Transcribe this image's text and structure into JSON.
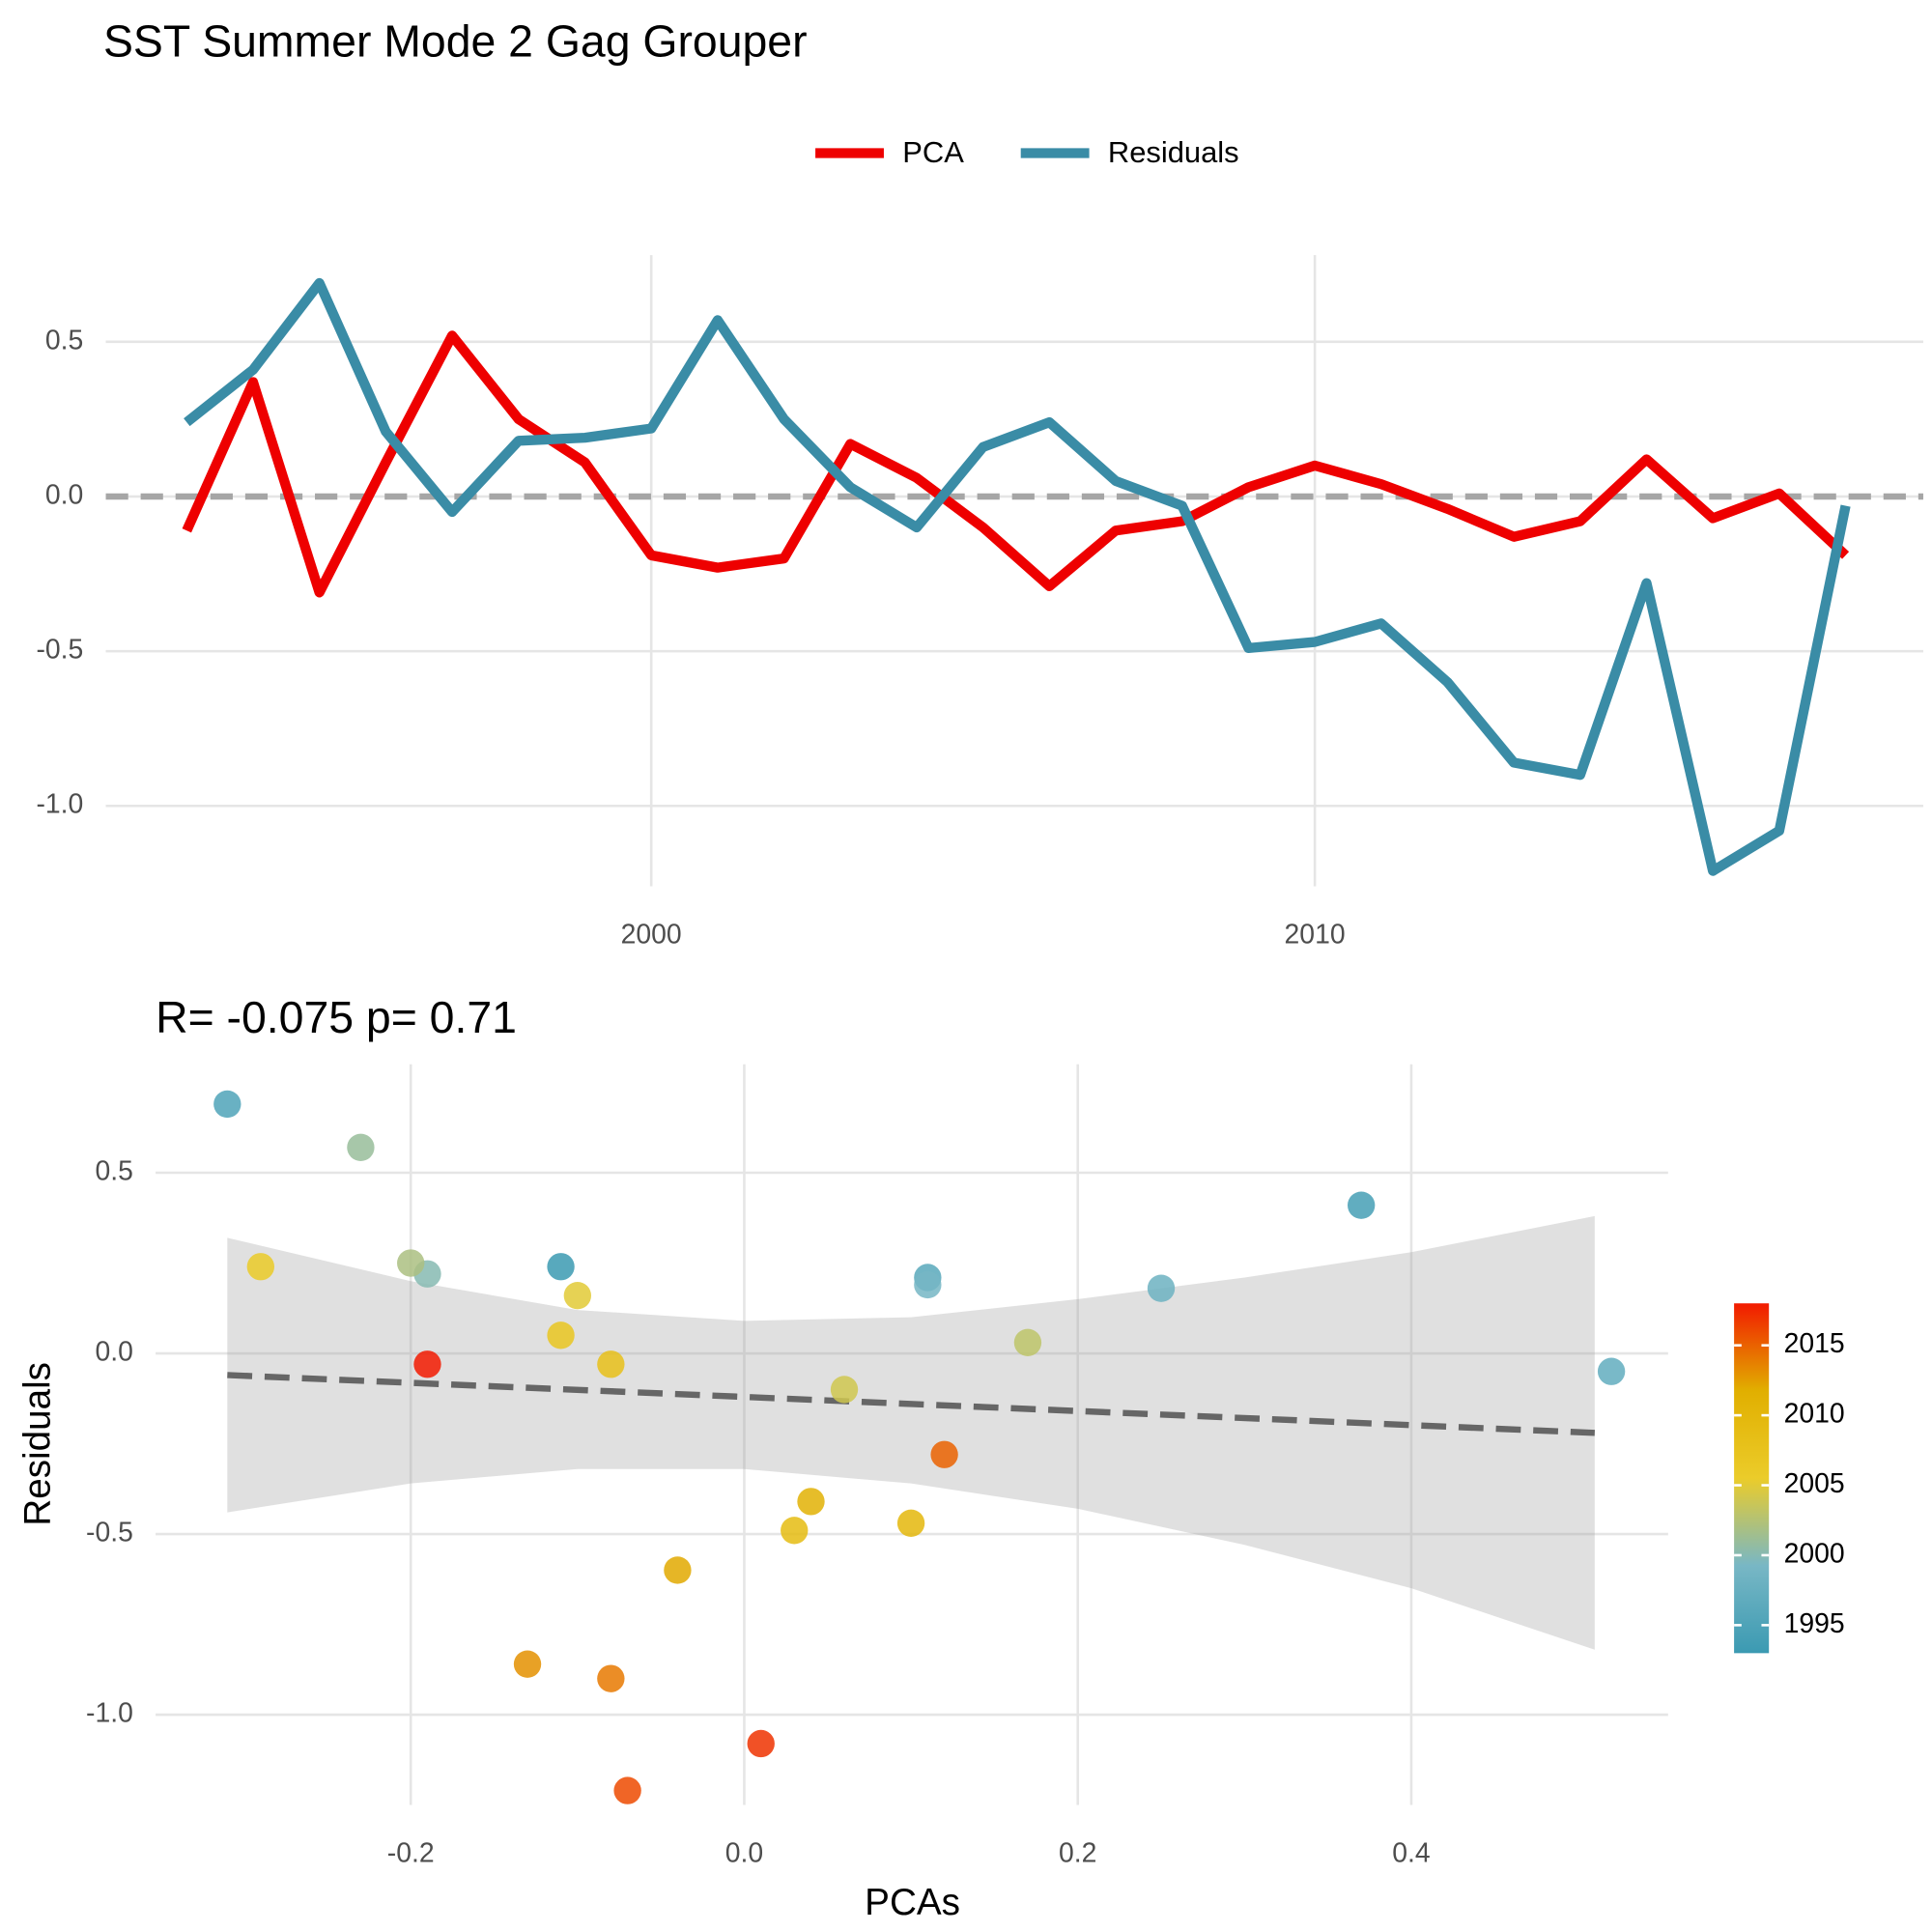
{
  "chart_data": [
    {
      "type": "line",
      "title": "SST Summer Mode 2 Gag Grouper",
      "x": [
        1993,
        1994,
        1995,
        1996,
        1997,
        1998,
        1999,
        2000,
        2001,
        2002,
        2003,
        2004,
        2005,
        2006,
        2007,
        2008,
        2009,
        2010,
        2011,
        2012,
        2013,
        2014,
        2015,
        2016,
        2017,
        2018
      ],
      "series": [
        {
          "name": "PCA",
          "color": "#ee0000",
          "values": [
            -0.11,
            0.37,
            -0.31,
            0.11,
            0.52,
            0.25,
            0.11,
            -0.19,
            -0.23,
            -0.2,
            0.17,
            0.06,
            -0.1,
            -0.29,
            -0.11,
            -0.08,
            0.03,
            0.1,
            0.04,
            -0.04,
            -0.13,
            -0.08,
            0.12,
            -0.07,
            0.01,
            -0.19
          ]
        },
        {
          "name": "Residuals",
          "color": "#3a8ca6",
          "values": [
            0.24,
            0.41,
            0.69,
            0.21,
            -0.05,
            0.18,
            0.19,
            0.22,
            0.57,
            0.25,
            0.03,
            -0.1,
            0.16,
            0.24,
            0.05,
            -0.03,
            -0.49,
            -0.47,
            -0.41,
            -0.6,
            -0.86,
            -0.9,
            -0.28,
            -1.21,
            -1.08,
            -0.03
          ]
        }
      ],
      "xlim": [
        1991.78,
        2019.17
      ],
      "xticks": [
        2000,
        2010
      ],
      "ylim": [
        -1.26,
        0.78
      ],
      "yticks": [
        {
          "value": -1,
          "label": "-1.0"
        },
        -0.5,
        {
          "value": 0,
          "label": "0.0"
        },
        0.5
      ],
      "hline": 0,
      "grid": true,
      "legend": "top"
    },
    {
      "type": "scatter",
      "title": "R= -0.075  p= 0.71",
      "xlabel": "PCAs",
      "ylabel": "Residuals",
      "x": [
        -0.11,
        0.37,
        -0.31,
        0.11,
        0.52,
        0.25,
        0.11,
        -0.19,
        -0.23,
        -0.2,
        0.17,
        0.06,
        -0.1,
        -0.29,
        -0.11,
        -0.08,
        0.03,
        0.1,
        0.04,
        -0.04,
        -0.13,
        -0.08,
        0.12,
        -0.07,
        0.01,
        -0.19
      ],
      "y": [
        0.24,
        0.41,
        0.69,
        0.21,
        -0.05,
        0.18,
        0.19,
        0.22,
        0.57,
        0.25,
        0.03,
        -0.1,
        0.16,
        0.24,
        0.05,
        -0.03,
        -0.49,
        -0.47,
        -0.41,
        -0.6,
        -0.86,
        -0.9,
        -0.28,
        -1.21,
        -1.08,
        -0.03
      ],
      "color_values": [
        1993,
        1994,
        1995,
        1996,
        1997,
        1998,
        1999,
        2000,
        2001,
        2002,
        2003,
        2004,
        2005,
        2006,
        2007,
        2008,
        2009,
        2010,
        2011,
        2012,
        2013,
        2014,
        2015,
        2016,
        2017,
        2018
      ],
      "colors": [
        "#3B9AB2",
        "#78B7C5",
        "#EBCC2A",
        "#E1AF00",
        "#F21A00"
      ],
      "color_lim": [
        1993,
        2018
      ],
      "color_ticks": [
        1995,
        2000,
        2005,
        2010,
        2015
      ],
      "trend": {
        "x": [
          -0.31,
          0.51
        ],
        "y": [
          -0.06,
          -0.22
        ]
      },
      "band": {
        "x": [
          -0.31,
          -0.2,
          -0.1,
          0.0,
          0.1,
          0.2,
          0.3,
          0.4,
          0.51
        ],
        "upper": [
          0.32,
          0.2,
          0.12,
          0.09,
          0.1,
          0.15,
          0.21,
          0.28,
          0.38
        ],
        "lower": [
          -0.44,
          -0.36,
          -0.32,
          -0.32,
          -0.36,
          -0.43,
          -0.53,
          -0.65,
          -0.82
        ]
      },
      "xlim": [
        -0.353,
        0.554
      ],
      "xticks": [
        {
          "value": -0.2,
          "label": "-0.2"
        },
        {
          "value": 0,
          "label": "0.0"
        },
        0.2,
        0.4
      ],
      "ylim": [
        -1.25,
        0.8
      ],
      "yticks": [
        {
          "value": -1,
          "label": "-1.0"
        },
        -0.5,
        {
          "value": 0,
          "label": "0.0"
        },
        0.5
      ],
      "grid": true
    }
  ]
}
